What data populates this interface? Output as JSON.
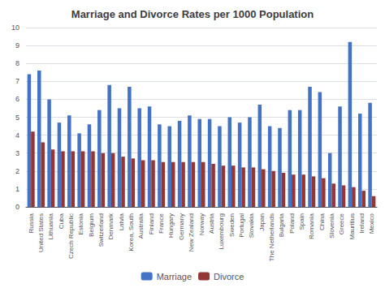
{
  "chart_data": {
    "type": "bar",
    "title": "Marriage and Divorce Rates per 1000 Population",
    "categories": [
      "Russia",
      "United States",
      "Lithuania",
      "Cuba",
      "Czech Republic",
      "Estonia",
      "Belgium",
      "Switzerland",
      "Denmark",
      "Latvia",
      "Korea, South",
      "Australia",
      "Finland",
      "France",
      "Hungary",
      "Germany",
      "New Zealand",
      "Norway",
      "Austria",
      "Luxembourg",
      "Sweden",
      "Portugal",
      "Slovakia",
      "Japan",
      "The Netherlands",
      "Bulgaria",
      "Poland",
      "Spain",
      "Romania",
      "China",
      "Slovenia",
      "Greece",
      "Mauritius",
      "Ireland",
      "Mexico"
    ],
    "series": [
      {
        "name": "Marriage",
        "color": "#4472C4",
        "values": [
          7.4,
          7.6,
          6.0,
          4.7,
          5.1,
          4.1,
          4.6,
          5.4,
          6.8,
          5.5,
          6.7,
          5.5,
          5.6,
          4.6,
          4.5,
          4.8,
          5.1,
          4.9,
          4.9,
          4.5,
          5.0,
          4.7,
          5.0,
          5.7,
          4.5,
          4.4,
          5.4,
          5.4,
          6.7,
          6.4,
          3.0,
          5.6,
          9.2,
          5.2,
          5.8
        ]
      },
      {
        "name": "Divorce",
        "color": "#943634",
        "values": [
          4.2,
          3.6,
          3.2,
          3.1,
          3.1,
          3.1,
          3.1,
          3.0,
          3.0,
          2.8,
          2.7,
          2.6,
          2.6,
          2.5,
          2.5,
          2.5,
          2.5,
          2.5,
          2.4,
          2.3,
          2.3,
          2.2,
          2.2,
          2.1,
          2.0,
          1.9,
          1.8,
          1.8,
          1.7,
          1.6,
          1.3,
          1.2,
          1.1,
          0.9,
          0.6
        ]
      }
    ],
    "ylim": [
      0,
      10
    ],
    "yticks": [
      0,
      1,
      2,
      3,
      4,
      5,
      6,
      7,
      8,
      9,
      10
    ],
    "grid": true,
    "legend": "bottom"
  }
}
